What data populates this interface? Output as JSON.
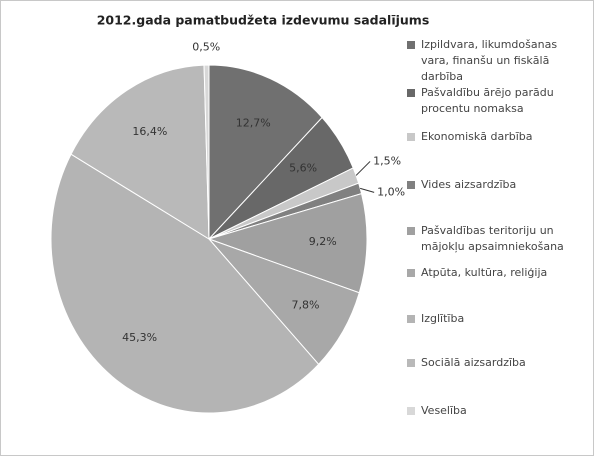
{
  "chart_data": {
    "type": "pie",
    "title": "2012.gada pamatbudžeta izdevumu sadalījums",
    "categories": [
      "Izpildvara, likumdošanas vara, finanšu un fiskālā darbība",
      "Pašvaldību ārējo parādu procentu nomaksa",
      "Ekonomiskā darbība",
      "Vides aizsardzība",
      "Pašvaldības teritoriju un mājokļu apsaimniekošana",
      "Atpūta, kultūra, reliģija",
      "Izglītība",
      "Sociālā aizsardzība",
      "Veselība"
    ],
    "values": [
      12.7,
      5.6,
      1.5,
      1.0,
      9.2,
      7.8,
      45.3,
      16.4,
      0.5
    ],
    "value_labels": [
      "12,7%",
      "5,6%",
      "1,5%",
      "1,0%",
      "9,2%",
      "7,8%",
      "45,3%",
      "16,4%",
      "0,5%"
    ],
    "colors": [
      "#707070",
      "#686868",
      "#c8c8c8",
      "#808080",
      "#a0a0a0",
      "#a8a8a8",
      "#b4b4b4",
      "#b9b9b9",
      "#d8d8d8"
    ],
    "legend": "right"
  }
}
